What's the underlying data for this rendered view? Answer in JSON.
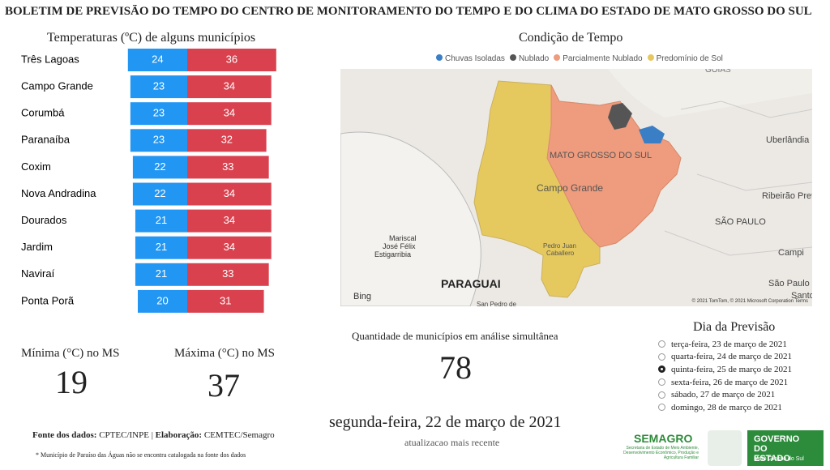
{
  "header": {
    "title": "BOLETIM DE PREVISÃO DO TEMPO DO CENTRO DE MONITORAMENTO DO TEMPO E DO CLIMA DO ESTADO DE MATO GROSSO DO SUL"
  },
  "chart_data": {
    "type": "bar",
    "orientation": "diverging",
    "title": "Temperaturas (ºC) de alguns municípios",
    "categories": [
      "Três Lagoas",
      "Campo Grande",
      "Corumbá",
      "Paranaíba",
      "Coxim",
      "Nova Andradina",
      "Dourados",
      "Jardim",
      "Naviraí",
      "Ponta Porã"
    ],
    "series": [
      {
        "color": "#2196f3",
        "values": [
          24,
          23,
          23,
          23,
          22,
          22,
          21,
          21,
          21,
          20
        ]
      },
      {
        "color": "#d9414e",
        "values": [
          36,
          34,
          34,
          32,
          33,
          34,
          34,
          34,
          33,
          31
        ]
      }
    ]
  },
  "map": {
    "title": "Condição de Tempo",
    "legend": [
      {
        "name": "Chuvas Isoladas",
        "color": "#3a7fc6"
      },
      {
        "name": "Nublado",
        "color": "#555555"
      },
      {
        "name": "Parcialmente Nublado",
        "color": "#ee9b7e"
      },
      {
        "name": "Predomínio de Sol",
        "color": "#e6c95e"
      }
    ],
    "labels": [
      "GOIÁS",
      "Uberlândia",
      "MATO GROSSO DO SUL",
      "Campo Grande",
      "Ribeirão Preto",
      "SÃO PAULO",
      "Mariscal",
      "José Félix",
      "Estigarribia",
      "Pedro Juan",
      "Caballero",
      "PARAGUAI",
      "Campi",
      "São Paulo",
      "Santo",
      "San Pedro de"
    ],
    "brand": "Bing",
    "credits": "© 2021 TomTom, © 2021 Microsoft Corporation Terms"
  },
  "stats": {
    "min_label": "Mínima (°C) no MS",
    "min_value": 19,
    "max_label": "Máxima (°C) no MS",
    "max_value": 37,
    "count_label": "Quantidade de municípios em análise simultânea",
    "count_value": 78
  },
  "date": {
    "current": "segunda-feira, 22 de março de 2021",
    "note": "atualizacao mais recente"
  },
  "forecast": {
    "title": "Dia da Previsão",
    "selected_index": 2,
    "options": [
      "terça-feira, 23 de março de 2021",
      "quarta-feira, 24 de março de 2021",
      "quinta-feira, 25 de março de 2021",
      "sexta-feira, 26 de março de 2021",
      "sábado, 27 de março de 2021",
      "domingo, 28 de março de 2021"
    ]
  },
  "footer": {
    "source_label": "Fonte dos dados:",
    "source": "CPTEC/INPE",
    "sep": "|",
    "made_label": "Elaboração:",
    "made": "CEMTEC/Semagro",
    "note": "* Município de Paraíso das Águas não se encontra catalogada na fonte dos dados"
  },
  "logos": {
    "semagro": "SEMAGRO",
    "semagro_sub": "Secretaria de Estado de Meio Ambiente, Desenvolvimento Econômico, Produção e Agricultura Familiar",
    "gov": "GOVERNO DO ESTADO",
    "gov_sub": "Mato Grosso do Sul"
  }
}
